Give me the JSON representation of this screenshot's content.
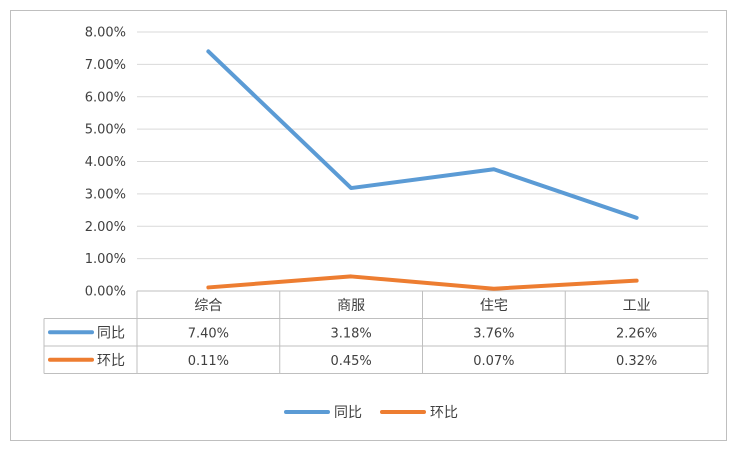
{
  "chart_data": {
    "type": "line",
    "categories": [
      "综合",
      "商服",
      "住宅",
      "工业"
    ],
    "ylim": [
      0,
      8
    ],
    "yticks": [
      "0.00%",
      "1.00%",
      "2.00%",
      "3.00%",
      "4.00%",
      "5.00%",
      "6.00%",
      "7.00%",
      "8.00%"
    ],
    "grid": true,
    "legend_position": "bottom",
    "series": [
      {
        "name": "同比",
        "color": "#5b9bd5",
        "values": [
          7.4,
          3.18,
          3.76,
          2.26
        ],
        "labels": [
          "7.40%",
          "3.18%",
          "3.76%",
          "2.26%"
        ]
      },
      {
        "name": "环比",
        "color": "#ed7d31",
        "values": [
          0.11,
          0.45,
          0.07,
          0.32
        ],
        "labels": [
          "0.11%",
          "0.45%",
          "0.07%",
          "0.32%"
        ]
      }
    ]
  }
}
